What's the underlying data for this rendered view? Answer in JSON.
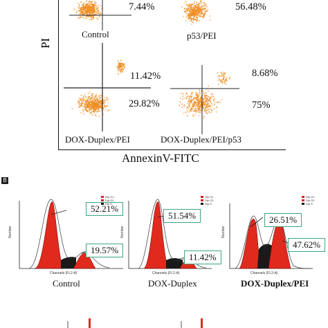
{
  "panel_a": {
    "y_axis_label": "PI",
    "x_axis_label": "AnnexinV-FITC",
    "quadrants": [
      {
        "label": "Control",
        "upper_pct": "",
        "lower_pct": "7.44%"
      },
      {
        "label": "p53/PEI",
        "upper_pct": "",
        "lower_pct": "56.48%"
      },
      {
        "label": "DOX-Duplex/PEI",
        "upper_pct": "11.42%",
        "lower_pct": "29.82%"
      },
      {
        "label": "DOX-Duplex/PEI/p53",
        "upper_pct": "8.68%",
        "lower_pct": "75%"
      }
    ]
  },
  "panel_b": {
    "label": "B",
    "histograms": [
      {
        "label": "Control",
        "g1_pct": "52.21%",
        "g2_pct": "19.57%",
        "y_axis": "Number",
        "x_axis": "Channels (FL2-A)"
      },
      {
        "label": "DOX-Duplex",
        "g1_pct": "51.54%",
        "g2_pct": "11.42%",
        "y_axis": "Number",
        "x_axis": "Channels (FL2-A)"
      },
      {
        "label": "DOX-Duplex/PEI",
        "g1_pct": "26.51%",
        "g2_pct": "47.62%",
        "y_axis": "Number",
        "x_axis": "Channels (FL2-A)"
      }
    ],
    "legend": [
      "Dip G1",
      "Dip G2",
      "Dip S"
    ],
    "colors": {
      "g1": "#e02a1e",
      "s": "#1a1a1a",
      "g2": "#e02a1e",
      "box": "#3da67a"
    }
  },
  "scatter_color": "#f08a1c"
}
